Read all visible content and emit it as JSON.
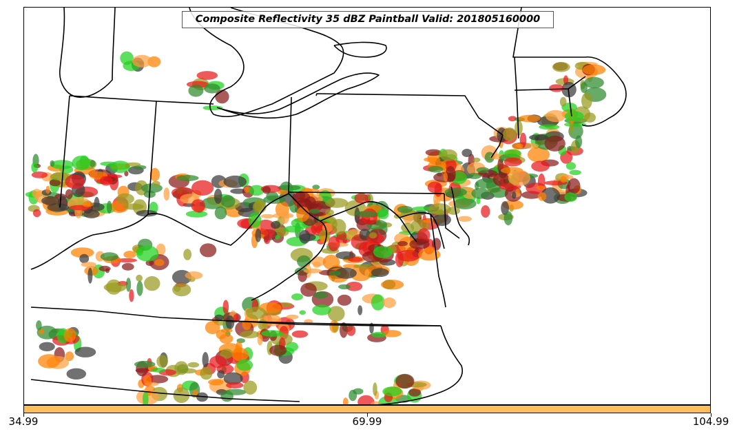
{
  "title": "Composite Reflectivity 35 dBZ Paintball Valid: 201805160000",
  "colorbar": {
    "color": "#FFBE5C",
    "min": 34.99,
    "max": 104.99,
    "ticks": [
      {
        "value": 34.99,
        "label": "34.99"
      },
      {
        "value": 69.99,
        "label": "69.99"
      },
      {
        "value": 104.99,
        "label": "104.99"
      }
    ]
  },
  "ensemble_colors": [
    "#E8191C",
    "#1FD11F",
    "#FF7F00",
    "#8B1A1A",
    "#3A3A3A",
    "#9A9A20",
    "#FFA040",
    "#2E8B2E"
  ]
}
